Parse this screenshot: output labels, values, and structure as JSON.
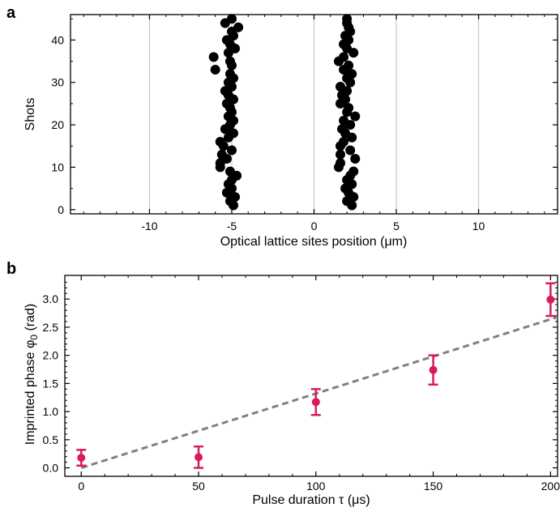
{
  "chart_data": [
    {
      "panel": "a",
      "type": "scatter",
      "xlabel": "Optical lattice sites position (μm)",
      "ylabel": "Shots",
      "xlim": [
        -14.8,
        14.8
      ],
      "ylim": [
        -1,
        46
      ],
      "xticks": [
        -10,
        -5,
        0,
        5,
        10
      ],
      "xtick_labels": [
        "-10",
        "-5",
        "0",
        "5",
        "10"
      ],
      "yticks": [
        0,
        10,
        20,
        30,
        40
      ],
      "ytick_labels": [
        "0",
        "10",
        "20",
        "30",
        "40"
      ],
      "vertical_gridlines_at": [
        -10,
        -5,
        0,
        5,
        10
      ],
      "marker_color": "#000000",
      "gridline_color": "#c8c8c8",
      "series": [
        {
          "points": [
            [
              -4.9,
              1
            ],
            [
              -5.1,
              2
            ],
            [
              -4.8,
              3
            ],
            [
              -5.3,
              4
            ],
            [
              -5.0,
              5
            ],
            [
              -5.2,
              6
            ],
            [
              -5.0,
              7
            ],
            [
              -4.7,
              8
            ],
            [
              -5.1,
              9
            ],
            [
              -5.7,
              10
            ],
            [
              -5.7,
              11
            ],
            [
              -5.3,
              12
            ],
            [
              -5.6,
              13
            ],
            [
              -5.0,
              14
            ],
            [
              -5.5,
              15
            ],
            [
              -5.7,
              16
            ],
            [
              -5.2,
              17
            ],
            [
              -4.9,
              18
            ],
            [
              -5.4,
              19
            ],
            [
              -5.1,
              20
            ],
            [
              -4.9,
              21
            ],
            [
              -5.2,
              22
            ],
            [
              -5.0,
              23
            ],
            [
              -5.1,
              24
            ],
            [
              -5.3,
              25
            ],
            [
              -4.9,
              26
            ],
            [
              -5.2,
              27
            ],
            [
              -5.4,
              28
            ],
            [
              -5.0,
              29
            ],
            [
              -5.2,
              30
            ],
            [
              -4.9,
              31
            ],
            [
              -5.1,
              32
            ],
            [
              -6.0,
              33
            ],
            [
              -5.0,
              34
            ],
            [
              -5.1,
              35
            ],
            [
              -6.1,
              36
            ],
            [
              -5.2,
              37
            ],
            [
              -4.8,
              38
            ],
            [
              -5.1,
              39
            ],
            [
              -5.3,
              40
            ],
            [
              -4.9,
              41
            ],
            [
              -5.0,
              42
            ],
            [
              -4.6,
              43
            ],
            [
              -5.4,
              44
            ],
            [
              -5.0,
              45
            ]
          ]
        },
        {
          "points": [
            [
              2.3,
              1
            ],
            [
              2.0,
              2
            ],
            [
              2.4,
              3
            ],
            [
              2.1,
              4
            ],
            [
              1.9,
              5
            ],
            [
              2.3,
              6
            ],
            [
              2.0,
              7
            ],
            [
              2.2,
              8
            ],
            [
              2.4,
              9
            ],
            [
              1.5,
              10
            ],
            [
              1.6,
              11
            ],
            [
              2.5,
              12
            ],
            [
              1.6,
              13
            ],
            [
              2.2,
              14
            ],
            [
              1.6,
              15
            ],
            [
              1.8,
              16
            ],
            [
              2.3,
              17
            ],
            [
              1.9,
              18
            ],
            [
              1.7,
              19
            ],
            [
              2.2,
              20
            ],
            [
              1.8,
              21
            ],
            [
              2.5,
              22
            ],
            [
              2.0,
              23
            ],
            [
              2.1,
              24
            ],
            [
              1.6,
              25
            ],
            [
              1.9,
              26
            ],
            [
              1.7,
              27
            ],
            [
              2.0,
              28
            ],
            [
              1.6,
              29
            ],
            [
              2.2,
              30
            ],
            [
              2.0,
              31
            ],
            [
              2.3,
              32
            ],
            [
              1.8,
              33
            ],
            [
              2.1,
              34
            ],
            [
              1.5,
              35
            ],
            [
              1.8,
              36
            ],
            [
              2.4,
              37
            ],
            [
              2.0,
              38
            ],
            [
              1.8,
              39
            ],
            [
              2.1,
              40
            ],
            [
              1.9,
              41
            ],
            [
              2.2,
              42
            ],
            [
              2.1,
              43
            ],
            [
              2.0,
              44
            ],
            [
              2.0,
              45
            ]
          ]
        }
      ]
    },
    {
      "panel": "b",
      "type": "scatter",
      "xlabel": "Pulse duration τ (μs)",
      "ylabel": "Imprinted phase φ",
      "ylabel_subscript": "0",
      "ylabel_suffix": " (rad)",
      "xlim": [
        -7,
        203
      ],
      "ylim": [
        -0.15,
        3.42
      ],
      "xticks": [
        0,
        50,
        100,
        150,
        200
      ],
      "xtick_labels": [
        "0",
        "50",
        "100",
        "150",
        "200"
      ],
      "yticks": [
        0,
        0.5,
        1,
        1.5,
        2,
        2.5,
        3
      ],
      "ytick_labels": [
        "0.0",
        "0.5",
        "1.0",
        "1.5",
        "2.0",
        "2.5",
        "3.0"
      ],
      "marker_color": "#d81b60",
      "fit_line_color": "#808080",
      "series": [
        {
          "x": [
            0,
            50,
            100,
            150,
            200
          ],
          "y": [
            0.18,
            0.19,
            1.17,
            1.74,
            2.99
          ],
          "yerr": [
            0.14,
            0.19,
            0.23,
            0.26,
            0.29
          ]
        }
      ],
      "fit_line": {
        "style": "dashed",
        "x": [
          0,
          203
        ],
        "y": [
          0.0,
          2.68
        ]
      }
    }
  ]
}
